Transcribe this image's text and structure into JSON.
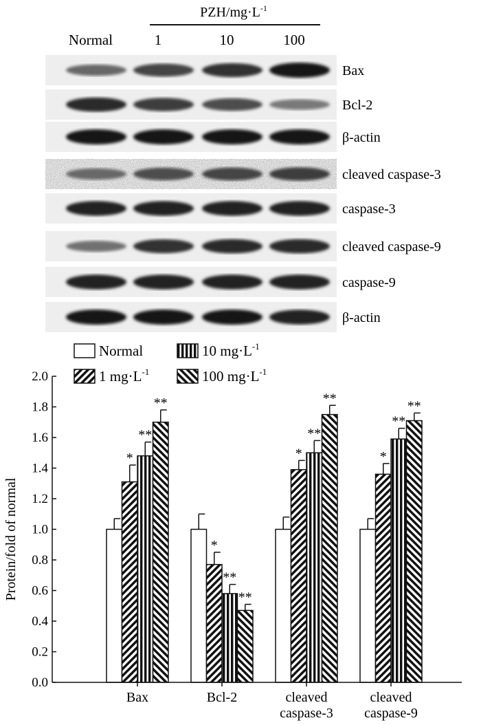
{
  "blot": {
    "header_label": "PZH/mg·L",
    "header_sup": "-1",
    "lanes": [
      "Normal",
      "1",
      "10",
      "100"
    ],
    "bands": [
      {
        "label": "Bax",
        "intensity": [
          0.55,
          0.75,
          0.85,
          1.0
        ],
        "noisy": false
      },
      {
        "label": "Bcl-2",
        "intensity": [
          0.9,
          0.8,
          0.7,
          0.45
        ],
        "noisy": false
      },
      {
        "label": "β-actin",
        "intensity": [
          1.0,
          1.0,
          1.0,
          1.0
        ],
        "noisy": false
      },
      {
        "label": "cleaved caspase-3",
        "intensity": [
          0.55,
          0.7,
          0.75,
          0.8
        ],
        "noisy": true
      },
      {
        "label": "caspase-3",
        "intensity": [
          0.95,
          0.95,
          0.95,
          0.95
        ],
        "noisy": false
      },
      {
        "label": "cleaved caspase-9",
        "intensity": [
          0.5,
          0.85,
          0.9,
          0.9
        ],
        "noisy": false
      },
      {
        "label": "caspase-9",
        "intensity": [
          0.95,
          0.95,
          0.95,
          0.95
        ],
        "noisy": false
      },
      {
        "label": "β-actin",
        "intensity": [
          1.0,
          1.0,
          1.0,
          0.95
        ],
        "noisy": false
      }
    ]
  },
  "chart_data": {
    "type": "bar",
    "ylabel": "Protein/fold of normal",
    "ylim": [
      0,
      2.0
    ],
    "yticks": [
      "0.0",
      "0.2",
      "0.4",
      "0.6",
      "0.8",
      "1.0",
      "1.2",
      "1.4",
      "1.6",
      "1.8",
      "2.0"
    ],
    "categories": [
      [
        "Bax"
      ],
      [
        "Bcl-2"
      ],
      [
        "cleaved",
        "caspase-3"
      ],
      [
        "cleaved",
        "caspase-9"
      ]
    ],
    "legend_position": "top-left",
    "series": [
      {
        "name": "Normal",
        "unit": "",
        "pattern": "white",
        "values": [
          1.0,
          1.0,
          1.0,
          1.0
        ],
        "errors": [
          0.07,
          0.1,
          0.08,
          0.07
        ],
        "sig": [
          "",
          "",
          "",
          ""
        ]
      },
      {
        "name": "1 mg·L",
        "unit": "-1",
        "pattern": "diag",
        "values": [
          1.31,
          0.77,
          1.39,
          1.36
        ],
        "errors": [
          0.11,
          0.08,
          0.06,
          0.07
        ],
        "sig": [
          "*",
          "*",
          "*",
          "*"
        ]
      },
      {
        "name": "10 mg·L",
        "unit": "-1",
        "pattern": "vert",
        "values": [
          1.48,
          0.58,
          1.5,
          1.59
        ],
        "errors": [
          0.09,
          0.06,
          0.08,
          0.07
        ],
        "sig": [
          "**",
          "**",
          "**",
          "**"
        ]
      },
      {
        "name": "100 mg·L",
        "unit": "-1",
        "pattern": "backdiag",
        "values": [
          1.7,
          0.47,
          1.75,
          1.71
        ],
        "errors": [
          0.08,
          0.04,
          0.06,
          0.05
        ],
        "sig": [
          "**",
          "**",
          "**",
          "**"
        ]
      }
    ]
  }
}
